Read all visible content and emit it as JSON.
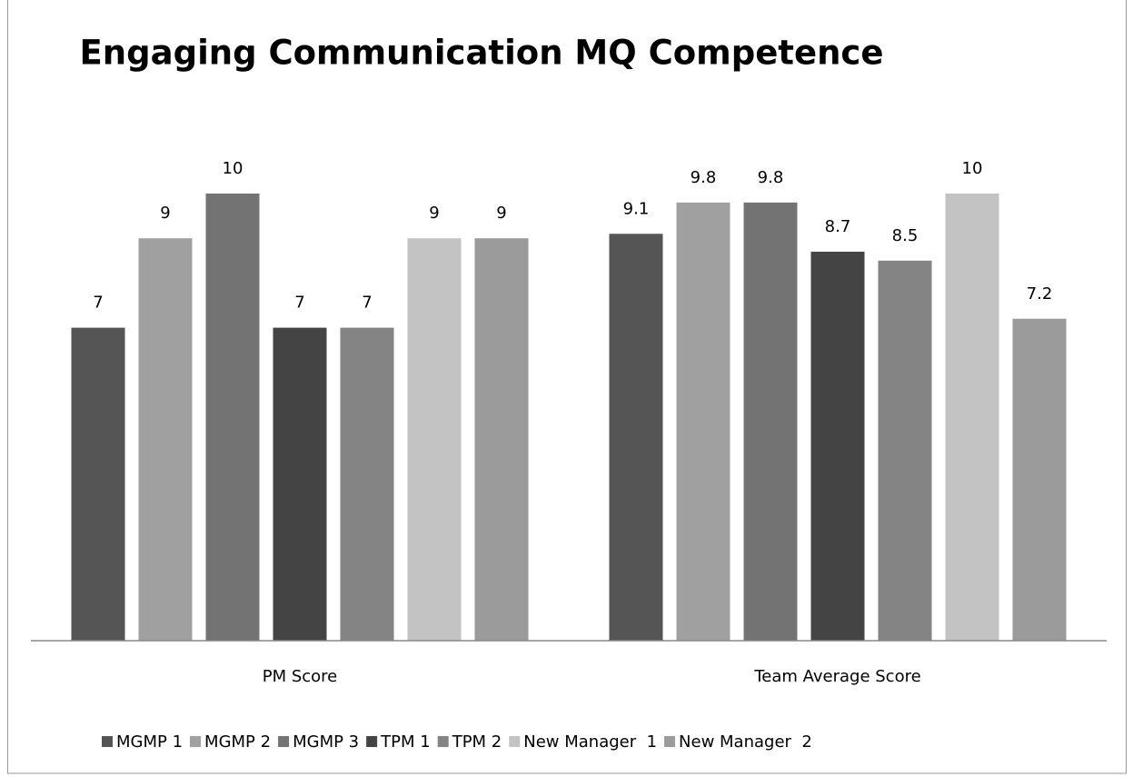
{
  "chart_data": {
    "type": "bar",
    "title": "Engaging Communication MQ Competence",
    "categories": [
      "PM Score",
      "Team Average Score"
    ],
    "series": [
      {
        "name": "MGMP 1",
        "color": "#555555",
        "values": [
          7,
          9.1
        ]
      },
      {
        "name": "MGMP 2",
        "color": "#a0a0a0",
        "values": [
          9,
          9.8
        ]
      },
      {
        "name": "MGMP 3",
        "color": "#737373",
        "values": [
          10,
          9.8
        ]
      },
      {
        "name": "TPM 1",
        "color": "#444444",
        "values": [
          7,
          8.7
        ]
      },
      {
        "name": "TPM 2",
        "color": "#848484",
        "values": [
          7,
          8.5
        ]
      },
      {
        "name": "New Manager  1",
        "color": "#c3c3c3",
        "values": [
          9,
          10
        ]
      },
      {
        "name": "New Manager  2",
        "color": "#9b9b9b",
        "values": [
          9,
          7.2
        ]
      }
    ],
    "ylim": [
      0,
      10
    ],
    "legend": "bottom"
  }
}
